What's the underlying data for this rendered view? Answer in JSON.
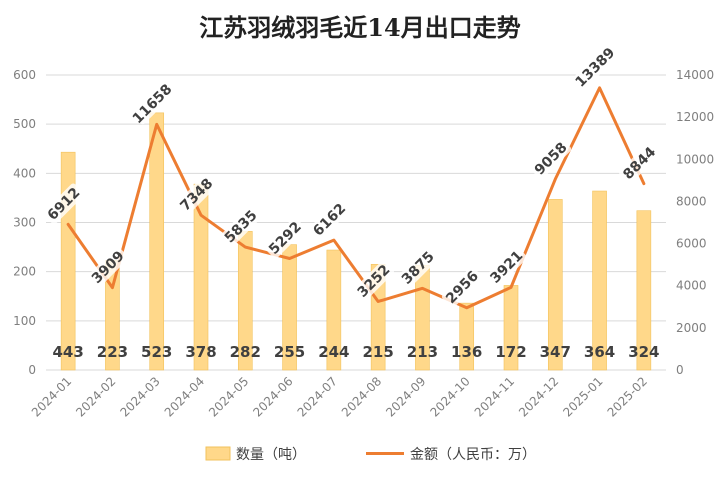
{
  "chart_data": {
    "type": "bar+line",
    "title": "江苏羽绒羽毛近14月出口走势",
    "categories": [
      "2024-01",
      "2024-02",
      "2024-03",
      "2024-04",
      "2024-05",
      "2024-06",
      "2024-07",
      "2024-08",
      "2024-09",
      "2024-10",
      "2024-11",
      "2024-12",
      "2025-01",
      "2025-02"
    ],
    "series": [
      {
        "name": "数量（吨）",
        "type": "bar",
        "axis": "left",
        "color": "#FFD88A",
        "values": [
          443,
          223,
          523,
          378,
          282,
          255,
          244,
          215,
          213,
          136,
          172,
          347,
          364,
          324
        ]
      },
      {
        "name": "金额（人民币：万）",
        "type": "line",
        "axis": "right",
        "color": "#ED7D31",
        "values": [
          6912,
          3909,
          11658,
          7348,
          5835,
          5292,
          6162,
          3252,
          3875,
          2956,
          3921,
          9058,
          13389,
          8844
        ]
      }
    ],
    "y_left": {
      "min": 0,
      "max": 600,
      "ticks": [
        "0",
        "100",
        "200",
        "300",
        "400",
        "500",
        "600"
      ]
    },
    "y_right": {
      "min": 0,
      "max": 14000,
      "ticks": [
        "0",
        "2000",
        "4000",
        "6000",
        "8000",
        "10000",
        "12000",
        "14000"
      ]
    },
    "grid": true,
    "legend_position": "bottom"
  }
}
